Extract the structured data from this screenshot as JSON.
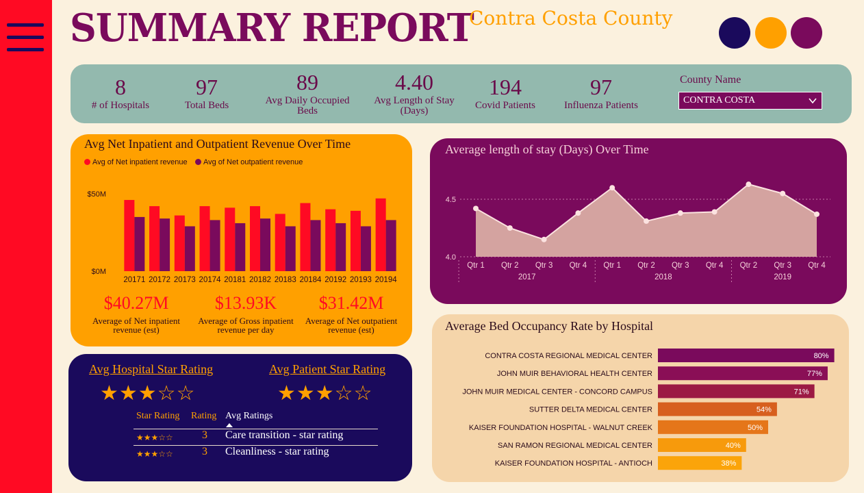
{
  "header": {
    "title": "SUMMARY REPORT",
    "subtitle": "Contra Costa County",
    "colors": {
      "navy": "#1a0a5c",
      "orange": "#ffa000",
      "purple": "#7a0a5c",
      "red": "#ff0a23"
    }
  },
  "kpis": [
    {
      "value": "8",
      "label": "# of Hospitals"
    },
    {
      "value": "97",
      "label": "Total Beds"
    },
    {
      "value": "89",
      "label": "Avg Daily Occupied Beds"
    },
    {
      "value": "4.40",
      "label": "Avg Length of Stay (Days)"
    },
    {
      "value": "194",
      "label": "Covid Patients"
    },
    {
      "value": "97",
      "label": "Influenza Patients"
    }
  ],
  "filter": {
    "label": "County Name",
    "selected": "CONTRA COSTA"
  },
  "revenue": {
    "title": "Avg Net Inpatient and Outpatient Revenue Over Time",
    "legend": [
      "Avg of Net inpatient revenue",
      "Avg of Net outpatient revenue"
    ],
    "summary": [
      {
        "value": "$40.27M",
        "label": "Average of Net inpatient revenue (est)"
      },
      {
        "value": "$13.93K",
        "label": "Average of Gross inpatient revenue per day"
      },
      {
        "value": "$31.42M",
        "label": "Average of Net outpatient revenue (est)"
      }
    ]
  },
  "stars": {
    "hospital_heading": "Avg Hospital Star Rating",
    "patient_heading": "Avg Patient Star Rating",
    "hospital_stars": "★★★☆☆",
    "patient_stars": "★★★☆☆",
    "columns": [
      "Star Rating",
      "Rating",
      "Avg Ratings"
    ],
    "rows": [
      {
        "stars": "★★★☆☆",
        "rating": "3",
        "name": "Care transition - star rating"
      },
      {
        "stars": "★★★☆☆",
        "rating": "3",
        "name": "Cleanliness - star rating"
      }
    ]
  },
  "chart_data": [
    {
      "type": "bar",
      "title": "Avg Net Inpatient and Outpatient Revenue Over Time",
      "categories": [
        "20171",
        "20172",
        "20173",
        "20174",
        "20181",
        "20182",
        "20183",
        "20184",
        "20192",
        "20193",
        "20194"
      ],
      "series": [
        {
          "name": "Avg of Net inpatient revenue",
          "color": "#ff0a23",
          "values": [
            46,
            42,
            36,
            42,
            41,
            42,
            37,
            44,
            40,
            39,
            47
          ]
        },
        {
          "name": "Avg of Net outpatient revenue",
          "color": "#7a0a5c",
          "values": [
            35,
            34,
            29,
            33,
            31,
            34,
            29,
            33,
            31,
            29,
            33
          ]
        }
      ],
      "ylim": [
        0,
        50
      ],
      "yticks": [
        {
          "v": 0,
          "label": "$0M"
        },
        {
          "v": 50,
          "label": "$50M"
        }
      ],
      "ylabel": "",
      "xlabel": ""
    },
    {
      "type": "area",
      "title": "Average length of stay (Days) Over Time",
      "categories": [
        "Qtr 1",
        "Qtr 2",
        "Qtr 3",
        "Qtr 4",
        "Qtr 1",
        "Qtr 2",
        "Qtr 3",
        "Qtr 4",
        "Qtr 2",
        "Qtr 3",
        "Qtr 4"
      ],
      "groups": [
        {
          "label": "2017",
          "count": 4
        },
        {
          "label": "2018",
          "count": 4
        },
        {
          "label": "2019",
          "count": 3
        }
      ],
      "values": [
        4.42,
        4.25,
        4.15,
        4.38,
        4.6,
        4.31,
        4.38,
        4.39,
        4.63,
        4.55,
        4.37
      ],
      "ylim": [
        4.0,
        4.6
      ],
      "yticks": [
        4.0,
        4.5
      ],
      "ylabel": "",
      "xlabel": ""
    },
    {
      "type": "bar",
      "orientation": "horizontal",
      "title": "Average Bed Occupancy Rate by Hospital",
      "categories": [
        "CONTRA COSTA REGIONAL MEDICAL CENTER",
        "JOHN MUIR BEHAVIORAL HEALTH CENTER",
        "JOHN MUIR MEDICAL CENTER - CONCORD CAMPUS",
        "SUTTER DELTA MEDICAL CENTER",
        "KAISER FOUNDATION HOSPITAL - WALNUT CREEK",
        "SAN RAMON REGIONAL MEDICAL CENTER",
        "KAISER FOUNDATION HOSPITAL - ANTIOCH"
      ],
      "values": [
        80,
        77,
        71,
        54,
        50,
        40,
        38
      ],
      "labels": [
        "80%",
        "77%",
        "71%",
        "54%",
        "50%",
        "40%",
        "38%"
      ],
      "colors": [
        "#7a0a5c",
        "#8a0f56",
        "#9c1a44",
        "#d75f1e",
        "#e5761a",
        "#f79a0c",
        "#fba40a"
      ]
    }
  ]
}
